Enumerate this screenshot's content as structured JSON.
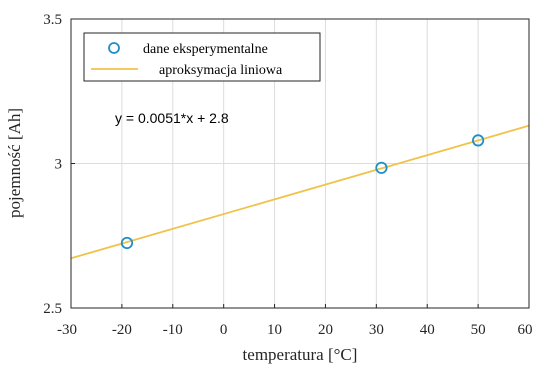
{
  "chart_data": {
    "type": "scatter",
    "xlabel": "temperatura [°C]",
    "ylabel": "pojemność [Ah]",
    "xlim": [
      -30,
      60
    ],
    "ylim": [
      2.5,
      3.5
    ],
    "xticks": [
      "-30",
      "-20",
      "-10",
      "0",
      "10",
      "20",
      "30",
      "40",
      "50",
      "60"
    ],
    "xtick_values": [
      -30,
      -20,
      -10,
      0,
      10,
      20,
      30,
      40,
      50,
      60
    ],
    "yticks": [
      "2.5",
      "3",
      "3.5"
    ],
    "ytick_values": [
      2.5,
      3.0,
      3.5
    ],
    "grid": true,
    "legend_position": "top-left",
    "series": [
      {
        "name": "dane eksperymentalne",
        "kind": "markers",
        "color": "#1f8fc7",
        "x": [
          -19,
          31,
          50
        ],
        "y": [
          2.725,
          2.985,
          3.08
        ]
      },
      {
        "name": "aproksymacja liniowa",
        "kind": "line",
        "color": "#f0c24a",
        "x": [
          -30,
          60
        ],
        "y": [
          2.672,
          3.131
        ]
      }
    ],
    "annotation": "y = 0.0051*x + 2.8"
  }
}
